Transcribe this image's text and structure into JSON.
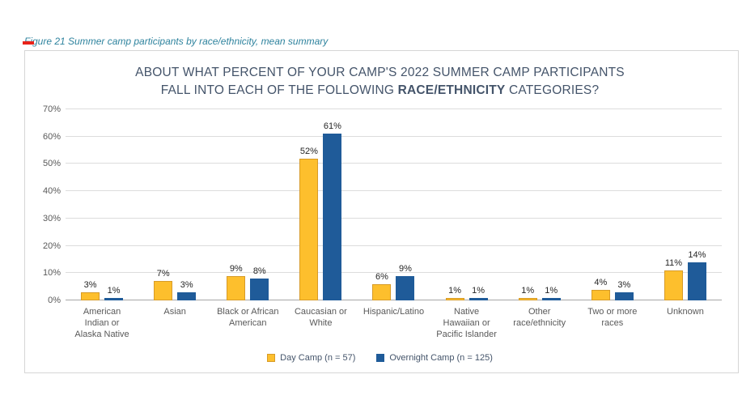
{
  "page": {
    "figure_caption": "Figure 21 Summer camp participants by race/ethnicity, mean summary"
  },
  "chart": {
    "title_line1": "ABOUT WHAT PERCENT OF YOUR CAMP'S 2022 SUMMER CAMP PARTICIPANTS",
    "title_line2_prefix": "FALL INTO EACH OF THE FOLLOWING ",
    "title_line2_bold": "RACE/ETHNICITY",
    "title_line2_suffix": " CATEGORIES?"
  },
  "chart_data": {
    "type": "bar",
    "title": "ABOUT WHAT PERCENT OF YOUR CAMP'S 2022 SUMMER CAMP PARTICIPANTS FALL INTO EACH OF THE FOLLOWING RACE/ETHNICITY CATEGORIES?",
    "categories": [
      "American Indian or Alaska Native",
      "Asian",
      "Black or African American",
      "Caucasian or White",
      "Hispanic/Latino",
      "Native Hawaiian or Pacific Islander",
      "Other race/ethnicity",
      "Two or more races",
      "Unknown"
    ],
    "series": [
      {
        "name": "Day Camp (n = 57)",
        "color": "#fdbf2d",
        "border_color": "#d79b28",
        "values": [
          3,
          7,
          9,
          52,
          6,
          1,
          1,
          4,
          11
        ]
      },
      {
        "name": "Overnight Camp (n = 125)",
        "color": "#1f5b99",
        "border_color": "#1f5b99",
        "values": [
          1,
          3,
          8,
          61,
          9,
          1,
          1,
          3,
          14
        ]
      }
    ],
    "xlabel": "",
    "ylabel": "",
    "ylim": [
      0,
      70
    ],
    "ytick_step": 10,
    "ytick_suffix": "%",
    "value_label_suffix": "%",
    "grid": true,
    "legend_position": "bottom"
  }
}
